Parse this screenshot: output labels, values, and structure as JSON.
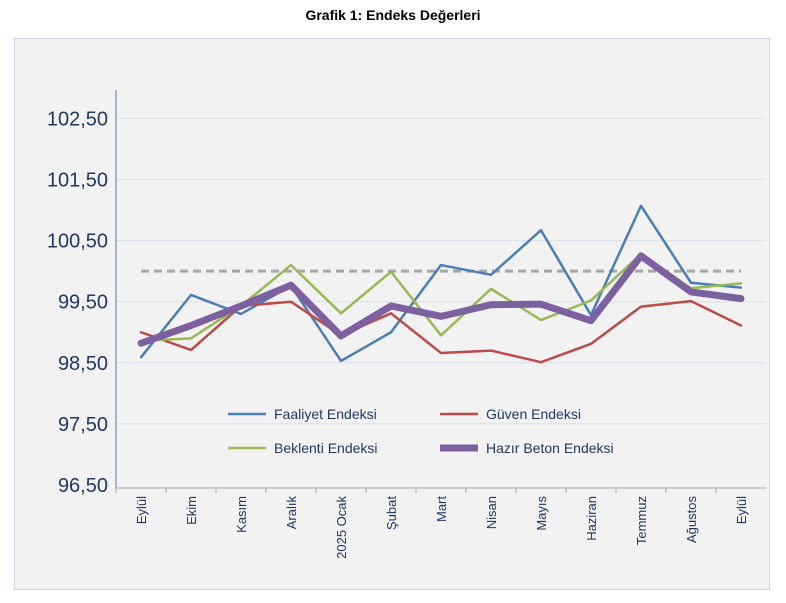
{
  "chart_data": {
    "type": "line",
    "title": "Grafik 1: Endeks Değerleri",
    "xlabel": "",
    "ylabel": "",
    "categories": [
      "Eylül",
      "Ekim",
      "Kasım",
      "Aralık",
      "2025 Ocak",
      "Şubat",
      "Mart",
      "Nisan",
      "Mayıs",
      "Haziran",
      "Temmuz",
      "Ağustos",
      "Eylül"
    ],
    "ylim": [
      96.5,
      102.5
    ],
    "yticks": [
      "96,50",
      "97,50",
      "98,50",
      "99,50",
      "100,50",
      "101,50",
      "102,50"
    ],
    "grid": true,
    "legend": "bottom-inside",
    "reference_line": {
      "value": 100,
      "style": "dashed",
      "color": "#a6a6a6"
    },
    "series": [
      {
        "name": "Faaliyet Endeksi",
        "color": "#4a7ebb",
        "values": [
          98.59,
          99.61,
          99.3,
          99.76,
          98.53,
          99.0,
          100.1,
          99.94,
          100.67,
          99.28,
          101.07,
          99.81,
          99.73
        ]
      },
      {
        "name": "Güven Endeksi",
        "color": "#be4b48",
        "values": [
          99.0,
          98.71,
          99.43,
          99.5,
          98.95,
          99.31,
          98.66,
          98.7,
          98.51,
          98.81,
          99.42,
          99.51,
          99.11
        ]
      },
      {
        "name": "Beklenti Endeksi",
        "color": "#98b954",
        "values": [
          98.86,
          98.9,
          99.43,
          100.1,
          99.31,
          99.99,
          98.95,
          99.71,
          99.2,
          99.52,
          100.28,
          99.72,
          99.8
        ]
      },
      {
        "name": "Hazır Beton Endeksi",
        "color": "#7d60a0",
        "values": [
          98.82,
          99.11,
          99.43,
          99.77,
          98.94,
          99.43,
          99.26,
          99.45,
          99.46,
          99.19,
          100.25,
          99.66,
          99.55
        ]
      }
    ]
  }
}
